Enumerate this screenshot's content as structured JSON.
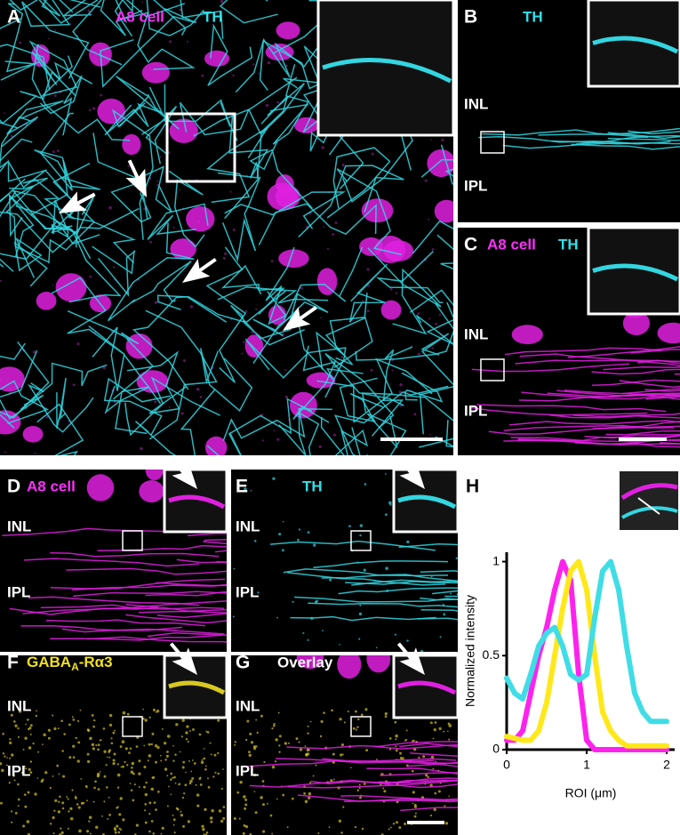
{
  "panels": {
    "A": {
      "label": "A",
      "stain1": "A8 cell",
      "stain2": "TH"
    },
    "B": {
      "label": "B",
      "stain1": "TH",
      "layer1": "INL",
      "layer2": "IPL"
    },
    "C": {
      "label": "C",
      "stain1": "A8 cell",
      "stain2": "TH",
      "layer1": "INL",
      "layer2": "IPL"
    },
    "D": {
      "label": "D",
      "stain1": "A8 cell",
      "layer1": "INL",
      "layer2": "IPL"
    },
    "E": {
      "label": "E",
      "stain1": "TH",
      "layer1": "INL",
      "layer2": "IPL"
    },
    "F": {
      "label": "F",
      "stain_main": "GABA",
      "stain_sub": "A",
      "stain_rest": "-Rα3",
      "layer1": "INL",
      "layer2": "IPL"
    },
    "G": {
      "label": "G",
      "stain1": "Overlay",
      "layer1": "INL",
      "layer2": "IPL"
    },
    "H": {
      "label": "H"
    }
  },
  "chart_data": {
    "type": "line",
    "xlabel": "ROI (μm)",
    "ylabel": "Normalized intensity",
    "x": [
      0,
      0.1,
      0.2,
      0.3,
      0.4,
      0.5,
      0.6,
      0.7,
      0.8,
      0.9,
      1.0,
      1.1,
      1.2,
      1.3,
      1.4,
      1.5,
      1.6,
      1.7,
      1.8,
      1.9,
      2.0
    ],
    "xlim": [
      0,
      2.1
    ],
    "xticks": [
      0,
      1,
      2
    ],
    "ylim": [
      0,
      1.05
    ],
    "yticks": [
      0,
      0.5,
      1
    ],
    "series": [
      {
        "color": "#ff22ee",
        "values": [
          0.05,
          0.05,
          0.1,
          0.3,
          0.5,
          0.65,
          0.85,
          1.0,
          0.9,
          0.4,
          0.05,
          0,
          0,
          0,
          0,
          0,
          0,
          0,
          0,
          0,
          0
        ]
      },
      {
        "color": "#ffe81a",
        "values": [
          0.07,
          0.06,
          0.05,
          0.05,
          0.1,
          0.25,
          0.5,
          0.75,
          0.95,
          1.0,
          0.85,
          0.5,
          0.2,
          0.1,
          0.05,
          0.02,
          0.02,
          0.02,
          0.02,
          0.02,
          0.02
        ]
      },
      {
        "color": "#3fdde6",
        "values": [
          0.38,
          0.3,
          0.27,
          0.4,
          0.55,
          0.62,
          0.65,
          0.55,
          0.4,
          0.37,
          0.4,
          0.7,
          0.95,
          1.0,
          0.85,
          0.55,
          0.3,
          0.2,
          0.15,
          0.15,
          0.15
        ]
      }
    ]
  }
}
